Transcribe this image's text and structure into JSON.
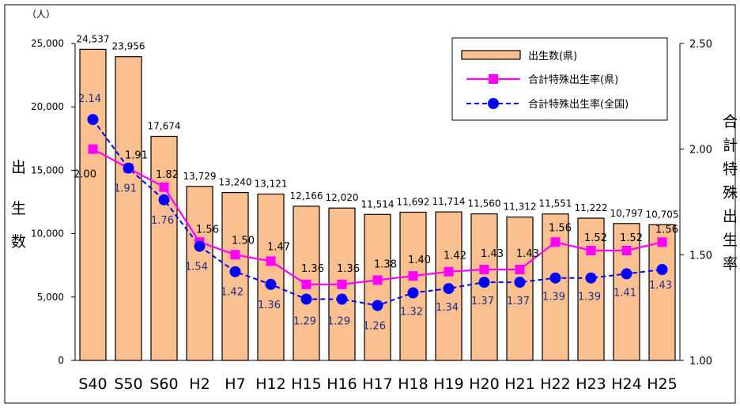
{
  "chart_data": {
    "type": "bar",
    "categories": [
      "S40",
      "S50",
      "S60",
      "H2",
      "H7",
      "H12",
      "H15",
      "H16",
      "H17",
      "H18",
      "H19",
      "H20",
      "H21",
      "H22",
      "H23",
      "H24",
      "H25"
    ],
    "series": [
      {
        "name": "出生数(県)",
        "type": "bar",
        "values": [
          24537,
          23956,
          17674,
          13729,
          13240,
          13121,
          12166,
          12020,
          11514,
          11692,
          11714,
          11560,
          11312,
          11551,
          11222,
          10797,
          10705
        ],
        "labels": [
          "24,537",
          "23,956",
          "17,674",
          "13,729",
          "13,240",
          "13,121",
          "12,166",
          "12,020",
          "11,514",
          "11,692",
          "11,714",
          "11,560",
          "11,312",
          "11,551",
          "11,222",
          "10,797",
          "10,705"
        ]
      },
      {
        "name": "合計特殊出生率(県)",
        "type": "line",
        "axis": "right",
        "values": [
          2.0,
          1.91,
          1.82,
          1.56,
          1.5,
          1.47,
          1.36,
          1.36,
          1.38,
          1.4,
          1.42,
          1.43,
          1.43,
          1.56,
          1.52,
          1.52,
          1.56
        ],
        "labels": [
          "2.00",
          "1.91",
          "1.82",
          "1.56",
          "1.50",
          "1.47",
          "1.36",
          "1.36",
          "1.38",
          "1.40",
          "1.42",
          "1.43",
          "1.43",
          "1.56",
          "1.52",
          "1.52",
          "1.56"
        ]
      },
      {
        "name": "合計特殊出生率(全国)",
        "type": "line",
        "axis": "right",
        "values": [
          2.14,
          1.91,
          1.76,
          1.54,
          1.42,
          1.36,
          1.29,
          1.29,
          1.26,
          1.32,
          1.34,
          1.37,
          1.37,
          1.39,
          1.39,
          1.41,
          1.43
        ],
        "labels": [
          "2.14",
          "1.91",
          "1.76",
          "1.54",
          "1.42",
          "1.36",
          "1.29",
          "1.29",
          "1.26",
          "1.32",
          "1.34",
          "1.37",
          "1.37",
          "1.39",
          "1.39",
          "1.41",
          "1.43"
        ]
      }
    ],
    "y_left": {
      "unit": "（人）",
      "label": "出生数",
      "ylim": [
        0,
        25000
      ],
      "ticks": [
        "0",
        "5,000",
        "10,000",
        "15,000",
        "20,000",
        "25,000"
      ]
    },
    "y_right": {
      "label": "合計特殊出生率",
      "ylim": [
        1.0,
        2.5
      ],
      "ticks": [
        "1.00",
        "1.50",
        "2.00",
        "2.50"
      ]
    },
    "legend": {
      "position": "top-right"
    },
    "grid": false,
    "colors": {
      "bar_fill": "#FAC090",
      "bar_stroke": "#000000",
      "pref_line": "#FF00FF",
      "national_line": "#0000FF",
      "national_label": "#1F2B8C"
    }
  }
}
